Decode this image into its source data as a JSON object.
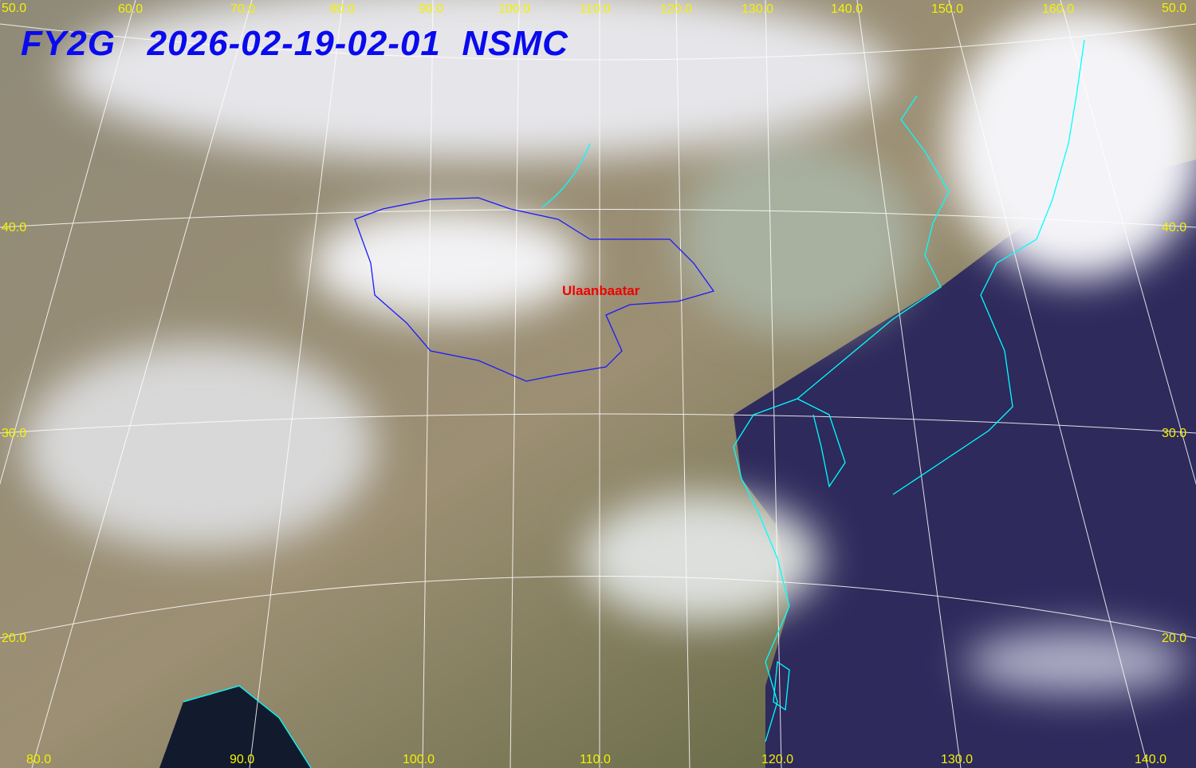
{
  "header": {
    "satellite": "FY2G",
    "datetime": "2026-02-19-02-01",
    "agency": "NSMC"
  },
  "city_label": "Ulaanbaatar",
  "top_longitude_labels": [
    "50.0",
    "60.0",
    "70.0",
    "80.0",
    "90.0",
    "100.0",
    "110.0",
    "120.0",
    "130.0",
    "140.0",
    "150.0",
    "160.0"
  ],
  "top_right_label": "50.0",
  "bottom_longitude_labels": [
    "80.0",
    "90.0",
    "100.0",
    "110.0",
    "120.0",
    "130.0",
    "140.0"
  ],
  "left_latitude_labels": [
    "40.0",
    "30.0",
    "20.0"
  ],
  "right_latitude_labels": [
    "40.0",
    "30.0",
    "20.0"
  ],
  "colors": {
    "title": "#0a0aee",
    "grid_labels": "#f2f200",
    "coastline": "#00ffff",
    "mongolia_border": "#1a1aff",
    "city": "#ee0000",
    "ocean": "#2e2a5c",
    "cloud": "#e8e8ee"
  }
}
